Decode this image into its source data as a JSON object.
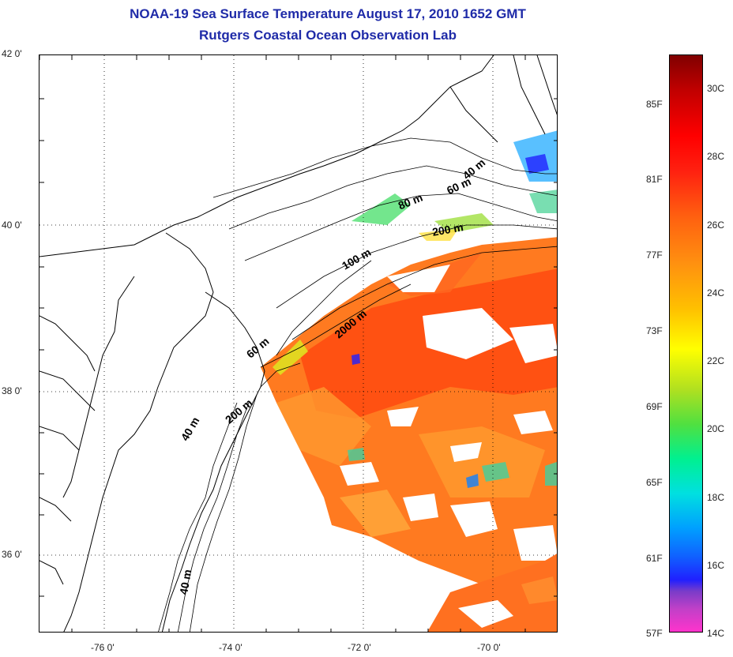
{
  "title": {
    "line1": "NOAA-19 Sea Surface Temperature August 17, 2010 1652 GMT",
    "line2": "Rutgers Coastal Ocean Observation Lab"
  },
  "axes": {
    "lat_labels": [
      "42 0'",
      "40 0'",
      "38 0'",
      "36 0'"
    ],
    "lon_labels": [
      "-76 0'",
      "-74 0'",
      "-72 0'",
      "-70 0'"
    ]
  },
  "contour_labels": [
    "40 m",
    "60 m",
    "80 m",
    "200 m",
    "100 m",
    "2000 m",
    "60 m",
    "200 m",
    "40 m",
    "40 m"
  ],
  "colorbar": {
    "fahrenheit_labels": [
      "85F",
      "81F",
      "77F",
      "73F",
      "69F",
      "65F",
      "61F",
      "57F"
    ],
    "celsius_labels": [
      "30C",
      "28C",
      "26C",
      "24C",
      "22C",
      "20C",
      "18C",
      "16C",
      "14C"
    ],
    "colors": [
      "#ff33cc",
      "#2020ff",
      "#00e0e0",
      "#ffff00",
      "#ff6010",
      "#ff0000",
      "#800000"
    ]
  }
}
